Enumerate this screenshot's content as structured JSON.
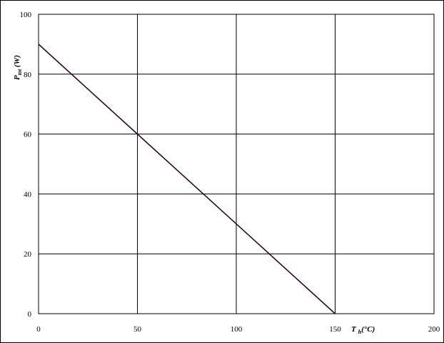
{
  "chart_data": {
    "type": "line",
    "xlabel": {
      "main": "T",
      "sub": "h",
      "rest": "(°C)"
    },
    "ylabel": {
      "main": "P",
      "sub": "tot",
      "rest": " (W)"
    },
    "xlim": [
      0,
      200
    ],
    "ylim": [
      0,
      100
    ],
    "x_ticks": [
      "0",
      "50",
      "100",
      "150",
      "200"
    ],
    "y_ticks": [
      "0",
      "20",
      "40",
      "60",
      "80",
      "100"
    ],
    "grid": true,
    "series": [
      {
        "x": [
          0,
          50,
          100,
          150
        ],
        "y": [
          90,
          60,
          30,
          0
        ],
        "color": "#2a0a2a"
      }
    ]
  }
}
